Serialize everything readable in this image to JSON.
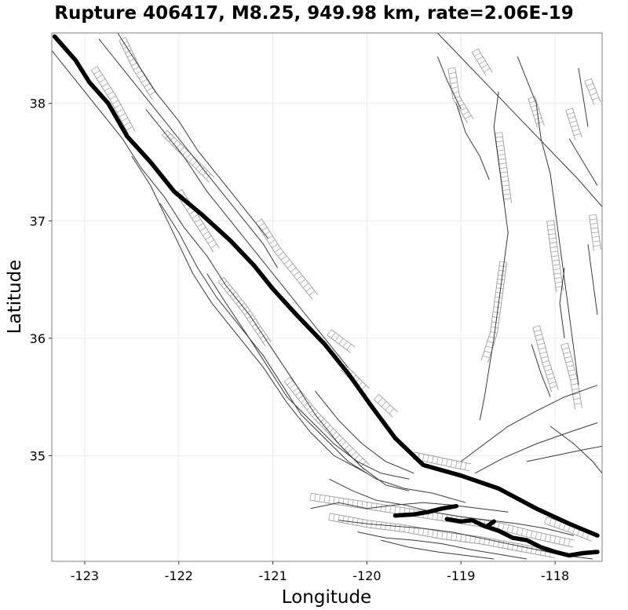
{
  "title": "Rupture 406417, M8.25, 949.98 km, rate=2.06E-19",
  "chart_data": {
    "type": "map",
    "title": "Rupture 406417, M8.25, 949.98 km, rate=2.06E-19",
    "xlabel": "Longitude",
    "ylabel": "Latitude",
    "xlim": [
      -123.35,
      -117.5
    ],
    "ylim": [
      34.1,
      38.6
    ],
    "x_ticks": [
      -123,
      -122,
      -121,
      -120,
      -119,
      -118
    ],
    "y_ticks": [
      35,
      36,
      37,
      38
    ],
    "x_tick_labels": [
      "-123",
      "-122",
      "-121",
      "-120",
      "-119",
      "-118"
    ],
    "y_tick_labels": [
      "35",
      "36",
      "37",
      "38"
    ],
    "grid": true,
    "rupture_traces": [
      {
        "name": "main-trace",
        "points": [
          [
            -123.32,
            38.57
          ],
          [
            -123.1,
            38.37
          ],
          [
            -122.95,
            38.18
          ],
          [
            -122.75,
            38.0
          ],
          [
            -122.55,
            37.72
          ],
          [
            -122.3,
            37.5
          ],
          [
            -122.05,
            37.25
          ],
          [
            -121.75,
            37.05
          ],
          [
            -121.45,
            36.83
          ],
          [
            -121.2,
            36.62
          ],
          [
            -121.0,
            36.42
          ],
          [
            -120.75,
            36.2
          ],
          [
            -120.45,
            35.95
          ],
          [
            -120.2,
            35.7
          ],
          [
            -119.95,
            35.42
          ],
          [
            -119.7,
            35.15
          ],
          [
            -119.4,
            34.92
          ],
          [
            -119.0,
            34.83
          ],
          [
            -118.6,
            34.72
          ],
          [
            -118.2,
            34.55
          ],
          [
            -117.85,
            34.42
          ],
          [
            -117.55,
            34.32
          ]
        ]
      },
      {
        "name": "south-trace-a",
        "points": [
          [
            -119.7,
            34.49
          ],
          [
            -119.5,
            34.5
          ],
          [
            -119.35,
            34.52
          ],
          [
            -119.2,
            34.55
          ],
          [
            -119.05,
            34.57
          ]
        ]
      },
      {
        "name": "south-trace-b",
        "points": [
          [
            -119.15,
            34.46
          ],
          [
            -119.0,
            34.44
          ],
          [
            -118.88,
            34.45
          ],
          [
            -118.75,
            34.4
          ],
          [
            -118.6,
            34.36
          ],
          [
            -118.45,
            34.3
          ],
          [
            -118.3,
            34.28
          ],
          [
            -118.15,
            34.22
          ],
          [
            -118.0,
            34.18
          ],
          [
            -117.85,
            34.15
          ],
          [
            -117.7,
            34.17
          ],
          [
            -117.55,
            34.18
          ]
        ]
      },
      {
        "name": "south-trace-c",
        "points": [
          [
            -118.72,
            34.4
          ],
          [
            -118.65,
            34.44
          ]
        ]
      }
    ],
    "fault_traces": [
      [
        [
          -123.35,
          38.45
        ],
        [
          -123.1,
          38.2
        ],
        [
          -122.85,
          37.95
        ],
        [
          -122.6,
          37.7
        ],
        [
          -122.4,
          37.45
        ],
        [
          -122.15,
          37.2
        ],
        [
          -121.95,
          36.95
        ],
        [
          -121.7,
          36.7
        ],
        [
          -121.5,
          36.45
        ],
        [
          -121.25,
          36.2
        ],
        [
          -121.0,
          35.9
        ],
        [
          -120.75,
          35.6
        ],
        [
          -120.55,
          35.35
        ],
        [
          -120.3,
          35.1
        ],
        [
          -120.05,
          34.9
        ],
        [
          -119.8,
          34.75
        ],
        [
          -119.55,
          34.7
        ]
      ],
      [
        [
          -122.85,
          38.55
        ],
        [
          -122.6,
          38.3
        ],
        [
          -122.35,
          38.05
        ],
        [
          -122.1,
          37.8
        ],
        [
          -121.85,
          37.55
        ],
        [
          -121.6,
          37.3
        ],
        [
          -121.35,
          37.05
        ],
        [
          -121.1,
          36.8
        ],
        [
          -120.95,
          36.6
        ]
      ],
      [
        [
          -122.65,
          38.6
        ],
        [
          -122.45,
          38.35
        ],
        [
          -122.25,
          38.1
        ],
        [
          -122.0,
          37.85
        ],
        [
          -121.8,
          37.6
        ],
        [
          -121.55,
          37.35
        ],
        [
          -121.3,
          37.1
        ],
        [
          -121.05,
          36.85
        ]
      ],
      [
        [
          -122.35,
          37.95
        ],
        [
          -122.15,
          37.75
        ],
        [
          -121.95,
          37.55
        ],
        [
          -121.7,
          37.25
        ],
        [
          -121.45,
          37.0
        ],
        [
          -121.2,
          36.75
        ],
        [
          -120.95,
          36.5
        ],
        [
          -120.7,
          36.25
        ],
        [
          -120.45,
          36.0
        ],
        [
          -120.2,
          35.75
        ]
      ],
      [
        [
          -122.5,
          37.55
        ],
        [
          -122.3,
          37.3
        ],
        [
          -122.15,
          37.05
        ],
        [
          -122.0,
          36.8
        ],
        [
          -121.85,
          36.55
        ],
        [
          -121.65,
          36.3
        ],
        [
          -121.4,
          36.05
        ],
        [
          -121.1,
          35.75
        ],
        [
          -120.85,
          35.45
        ],
        [
          -120.6,
          35.2
        ],
        [
          -120.35,
          35.0
        ],
        [
          -120.0,
          34.85
        ]
      ],
      [
        [
          -122.2,
          37.15
        ],
        [
          -122.0,
          36.9
        ],
        [
          -121.8,
          36.6
        ],
        [
          -121.6,
          36.35
        ],
        [
          -121.35,
          36.1
        ],
        [
          -121.1,
          35.85
        ],
        [
          -120.9,
          35.6
        ],
        [
          -120.7,
          35.35
        ],
        [
          -120.45,
          35.15
        ],
        [
          -120.2,
          34.95
        ],
        [
          -119.9,
          34.8
        ],
        [
          -119.6,
          34.72
        ],
        [
          -119.3,
          34.68
        ],
        [
          -118.95,
          34.6
        ]
      ],
      [
        [
          -121.7,
          36.55
        ],
        [
          -121.5,
          36.3
        ],
        [
          -121.25,
          36.0
        ],
        [
          -121.05,
          35.75
        ],
        [
          -120.85,
          35.5
        ],
        [
          -120.6,
          35.3
        ],
        [
          -120.35,
          35.1
        ],
        [
          -120.1,
          34.95
        ],
        [
          -119.85,
          34.85
        ],
        [
          -119.55,
          34.8
        ]
      ],
      [
        [
          -120.55,
          35.55
        ],
        [
          -120.3,
          35.3
        ],
        [
          -120.05,
          35.1
        ],
        [
          -119.8,
          34.95
        ],
        [
          -119.5,
          34.85
        ]
      ],
      [
        [
          -120.6,
          34.55
        ],
        [
          -120.3,
          34.6
        ],
        [
          -120.0,
          34.55
        ],
        [
          -119.7,
          34.58
        ],
        [
          -119.4,
          34.6
        ],
        [
          -119.1,
          34.58
        ],
        [
          -118.8,
          34.55
        ],
        [
          -118.5,
          34.52
        ]
      ],
      [
        [
          -120.3,
          34.45
        ],
        [
          -120.0,
          34.42
        ],
        [
          -119.7,
          34.4
        ],
        [
          -119.4,
          34.38
        ],
        [
          -119.1,
          34.35
        ],
        [
          -118.8,
          34.3
        ],
        [
          -118.5,
          34.25
        ],
        [
          -118.2,
          34.2
        ],
        [
          -117.9,
          34.15
        ],
        [
          -117.6,
          34.12
        ]
      ],
      [
        [
          -120.1,
          34.35
        ],
        [
          -119.8,
          34.3
        ],
        [
          -119.5,
          34.28
        ],
        [
          -119.2,
          34.25
        ],
        [
          -118.9,
          34.2
        ],
        [
          -118.6,
          34.16
        ],
        [
          -118.3,
          34.12
        ]
      ],
      [
        [
          -120.4,
          34.8
        ],
        [
          -120.15,
          34.7
        ],
        [
          -119.9,
          34.62
        ],
        [
          -119.6,
          34.58
        ],
        [
          -119.3,
          34.52
        ],
        [
          -119.0,
          34.48
        ],
        [
          -118.7,
          34.45
        ],
        [
          -118.4,
          34.42
        ],
        [
          -118.1,
          34.38
        ],
        [
          -117.8,
          34.32
        ]
      ],
      [
        [
          -119.85,
          34.28
        ],
        [
          -119.55,
          34.22
        ],
        [
          -119.25,
          34.18
        ],
        [
          -118.95,
          34.15
        ],
        [
          -118.65,
          34.12
        ]
      ],
      [
        [
          -119.0,
          34.95
        ],
        [
          -118.75,
          35.1
        ],
        [
          -118.5,
          35.25
        ],
        [
          -118.2,
          35.38
        ],
        [
          -117.9,
          35.5
        ],
        [
          -117.55,
          35.6
        ]
      ],
      [
        [
          -118.85,
          34.85
        ],
        [
          -118.55,
          34.98
        ],
        [
          -118.2,
          35.1
        ],
        [
          -117.85,
          35.2
        ],
        [
          -117.55,
          35.28
        ]
      ],
      [
        [
          -118.3,
          34.95
        ],
        [
          -118.0,
          35.0
        ],
        [
          -117.7,
          35.05
        ],
        [
          -117.5,
          35.08
        ]
      ],
      [
        [
          -118.05,
          35.25
        ],
        [
          -117.8,
          35.1
        ],
        [
          -117.6,
          34.95
        ],
        [
          -117.5,
          34.85
        ]
      ],
      [
        [
          -119.25,
          38.6
        ],
        [
          -118.95,
          38.35
        ],
        [
          -118.65,
          38.1
        ],
        [
          -118.35,
          37.85
        ],
        [
          -118.05,
          37.6
        ],
        [
          -117.75,
          37.35
        ],
        [
          -117.5,
          37.12
        ]
      ],
      [
        [
          -118.6,
          38.1
        ],
        [
          -118.65,
          37.8
        ],
        [
          -118.6,
          37.5
        ],
        [
          -118.55,
          37.2
        ],
        [
          -118.5,
          36.9
        ],
        [
          -118.55,
          36.6
        ],
        [
          -118.6,
          36.3
        ],
        [
          -118.65,
          36.0
        ],
        [
          -118.7,
          35.75
        ],
        [
          -118.75,
          35.5
        ],
        [
          -118.8,
          35.3
        ]
      ],
      [
        [
          -118.2,
          38.0
        ],
        [
          -118.15,
          37.7
        ],
        [
          -118.05,
          37.4
        ],
        [
          -118.0,
          37.1
        ],
        [
          -117.95,
          36.8
        ],
        [
          -117.9,
          36.5
        ],
        [
          -117.85,
          36.2
        ],
        [
          -117.8,
          35.9
        ],
        [
          -117.75,
          35.6
        ]
      ],
      [
        [
          -119.05,
          38.0
        ],
        [
          -118.95,
          37.75
        ],
        [
          -118.8,
          37.55
        ],
        [
          -118.7,
          37.35
        ]
      ],
      [
        [
          -119.25,
          38.4
        ],
        [
          -119.15,
          38.2
        ],
        [
          -119.0,
          37.95
        ]
      ],
      [
        [
          -117.75,
          38.3
        ],
        [
          -117.7,
          38.05
        ],
        [
          -117.65,
          37.8
        ]
      ],
      [
        [
          -118.4,
          38.4
        ],
        [
          -118.3,
          38.2
        ],
        [
          -118.2,
          38.0
        ]
      ],
      [
        [
          -117.85,
          37.7
        ],
        [
          -117.7,
          37.5
        ],
        [
          -117.55,
          37.3
        ]
      ],
      [
        [
          -117.65,
          36.8
        ],
        [
          -117.6,
          36.5
        ],
        [
          -117.55,
          36.2
        ]
      ],
      [
        [
          -118.25,
          35.95
        ],
        [
          -118.15,
          35.7
        ],
        [
          -118.05,
          35.5
        ]
      ],
      [
        [
          -117.9,
          36.6
        ],
        [
          -117.95,
          36.3
        ],
        [
          -117.9,
          36.0
        ]
      ]
    ],
    "ladder_faults": [
      [
        [
          -122.9,
          38.3
        ],
        [
          -122.7,
          38.05
        ],
        [
          -122.5,
          37.75
        ]
      ],
      [
        [
          -122.6,
          38.55
        ],
        [
          -122.45,
          38.3
        ],
        [
          -122.25,
          38.05
        ]
      ],
      [
        [
          -122.15,
          37.75
        ],
        [
          -121.9,
          37.55
        ],
        [
          -121.65,
          37.35
        ]
      ],
      [
        [
          -121.15,
          37.0
        ],
        [
          -120.95,
          36.75
        ],
        [
          -120.75,
          36.55
        ],
        [
          -120.55,
          36.35
        ]
      ],
      [
        [
          -120.4,
          36.05
        ],
        [
          -120.15,
          35.9
        ]
      ],
      [
        [
          -120.25,
          35.75
        ],
        [
          -120.0,
          35.55
        ]
      ],
      [
        [
          -119.9,
          35.5
        ],
        [
          -119.7,
          35.35
        ]
      ],
      [
        [
          -122.0,
          37.25
        ],
        [
          -121.8,
          37.0
        ],
        [
          -121.6,
          36.75
        ]
      ],
      [
        [
          -121.55,
          36.5
        ],
        [
          -121.3,
          36.25
        ],
        [
          -121.05,
          35.95
        ]
      ],
      [
        [
          -120.85,
          35.65
        ],
        [
          -120.55,
          35.35
        ],
        [
          -120.25,
          35.1
        ],
        [
          -120.0,
          34.9
        ]
      ],
      [
        [
          -119.5,
          35.0
        ],
        [
          -119.2,
          34.95
        ],
        [
          -118.9,
          34.9
        ]
      ],
      [
        [
          -120.6,
          34.65
        ],
        [
          -120.2,
          34.6
        ],
        [
          -119.8,
          34.55
        ],
        [
          -119.4,
          34.5
        ],
        [
          -119.0,
          34.45
        ],
        [
          -118.6,
          34.4
        ],
        [
          -118.2,
          34.32
        ],
        [
          -117.8,
          34.25
        ]
      ],
      [
        [
          -120.4,
          34.48
        ],
        [
          -120.0,
          34.42
        ],
        [
          -119.6,
          34.38
        ],
        [
          -119.2,
          34.32
        ],
        [
          -118.8,
          34.28
        ],
        [
          -118.4,
          34.22
        ],
        [
          -118.0,
          34.16
        ]
      ],
      [
        [
          -118.1,
          34.45
        ],
        [
          -117.85,
          34.38
        ],
        [
          -117.6,
          34.3
        ]
      ],
      [
        [
          -119.1,
          38.3
        ],
        [
          -119.05,
          38.05
        ],
        [
          -118.9,
          37.85
        ]
      ],
      [
        [
          -118.6,
          37.75
        ],
        [
          -118.55,
          37.45
        ],
        [
          -118.5,
          37.15
        ]
      ],
      [
        [
          -118.55,
          36.65
        ],
        [
          -118.6,
          36.35
        ],
        [
          -118.65,
          36.05
        ],
        [
          -118.75,
          35.8
        ]
      ],
      [
        [
          -118.05,
          37.0
        ],
        [
          -118.0,
          36.7
        ],
        [
          -117.95,
          36.4
        ]
      ],
      [
        [
          -117.9,
          35.95
        ],
        [
          -117.8,
          35.65
        ],
        [
          -117.75,
          35.4
        ]
      ],
      [
        [
          -118.2,
          36.1
        ],
        [
          -118.1,
          35.8
        ],
        [
          -118.0,
          35.55
        ]
      ],
      [
        [
          -117.6,
          37.05
        ],
        [
          -117.55,
          36.75
        ]
      ],
      [
        [
          -118.25,
          38.05
        ],
        [
          -118.15,
          37.8
        ]
      ],
      [
        [
          -118.85,
          38.45
        ],
        [
          -118.7,
          38.25
        ]
      ],
      [
        [
          -117.85,
          37.95
        ],
        [
          -117.75,
          37.7
        ]
      ],
      [
        [
          -117.65,
          38.2
        ],
        [
          -117.55,
          38.0
        ]
      ]
    ]
  }
}
